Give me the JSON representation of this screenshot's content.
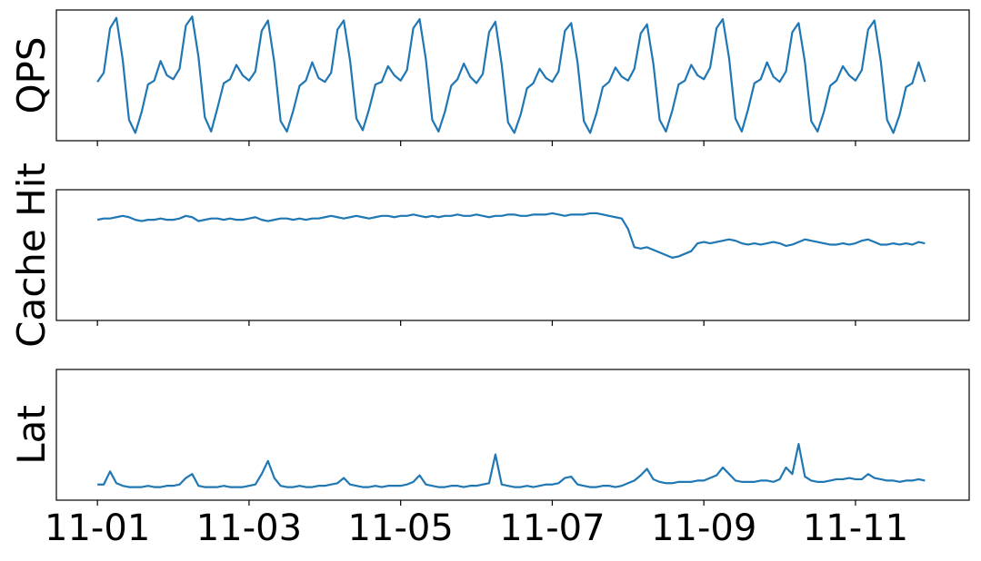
{
  "chart_data": [
    {
      "type": "line",
      "ylabel": "QPS",
      "color": "#1f77b4",
      "xlim": [
        -13,
        276
      ],
      "ylim": [
        0,
        1
      ],
      "xticks": [
        0,
        48,
        96,
        144,
        192,
        240
      ],
      "x": [
        0,
        2,
        4,
        6,
        8,
        10,
        12,
        14,
        16,
        18,
        20,
        22,
        24,
        26,
        28,
        30,
        32,
        34,
        36,
        38,
        40,
        42,
        44,
        46,
        48,
        50,
        52,
        54,
        56,
        58,
        60,
        62,
        64,
        66,
        68,
        70,
        72,
        74,
        76,
        78,
        80,
        82,
        84,
        86,
        88,
        90,
        92,
        94,
        96,
        98,
        100,
        102,
        104,
        106,
        108,
        110,
        112,
        114,
        116,
        118,
        120,
        122,
        124,
        126,
        128,
        130,
        132,
        134,
        136,
        138,
        140,
        142,
        144,
        146,
        148,
        150,
        152,
        154,
        156,
        158,
        160,
        162,
        164,
        166,
        168,
        170,
        172,
        174,
        176,
        178,
        180,
        182,
        184,
        186,
        188,
        190,
        192,
        194,
        196,
        198,
        200,
        202,
        204,
        206,
        208,
        210,
        212,
        214,
        216,
        218,
        220,
        222,
        224,
        226,
        228,
        230,
        232,
        234,
        236,
        238,
        240,
        242,
        244,
        246,
        248,
        250,
        252,
        254,
        256,
        258,
        260,
        262
      ],
      "values": [
        0.45,
        0.52,
        0.86,
        0.94,
        0.62,
        0.16,
        0.06,
        0.22,
        0.43,
        0.46,
        0.61,
        0.5,
        0.47,
        0.55,
        0.88,
        0.95,
        0.64,
        0.18,
        0.07,
        0.25,
        0.44,
        0.47,
        0.58,
        0.5,
        0.46,
        0.53,
        0.84,
        0.92,
        0.6,
        0.15,
        0.07,
        0.23,
        0.42,
        0.46,
        0.6,
        0.48,
        0.45,
        0.52,
        0.85,
        0.92,
        0.61,
        0.17,
        0.08,
        0.24,
        0.43,
        0.45,
        0.57,
        0.5,
        0.46,
        0.54,
        0.86,
        0.93,
        0.62,
        0.16,
        0.07,
        0.22,
        0.42,
        0.47,
        0.59,
        0.49,
        0.44,
        0.51,
        0.83,
        0.91,
        0.58,
        0.14,
        0.06,
        0.2,
        0.4,
        0.44,
        0.55,
        0.48,
        0.45,
        0.53,
        0.84,
        0.9,
        0.6,
        0.15,
        0.06,
        0.21,
        0.41,
        0.45,
        0.56,
        0.49,
        0.46,
        0.55,
        0.82,
        0.89,
        0.59,
        0.16,
        0.07,
        0.23,
        0.43,
        0.46,
        0.58,
        0.5,
        0.47,
        0.56,
        0.86,
        0.93,
        0.63,
        0.17,
        0.07,
        0.24,
        0.44,
        0.47,
        0.6,
        0.49,
        0.45,
        0.53,
        0.83,
        0.9,
        0.6,
        0.15,
        0.07,
        0.22,
        0.42,
        0.46,
        0.57,
        0.5,
        0.46,
        0.54,
        0.85,
        0.92,
        0.61,
        0.16,
        0.06,
        0.2,
        0.41,
        0.44,
        0.6,
        0.45
      ]
    },
    {
      "type": "line",
      "ylabel": "Cache Hit",
      "color": "#1f77b4",
      "xlim": [
        -13,
        276
      ],
      "ylim": [
        0,
        1
      ],
      "xticks": [
        0,
        48,
        96,
        144,
        192,
        240
      ],
      "x": [
        0,
        2,
        4,
        6,
        8,
        10,
        12,
        14,
        16,
        18,
        20,
        22,
        24,
        26,
        28,
        30,
        32,
        34,
        36,
        38,
        40,
        42,
        44,
        46,
        48,
        50,
        52,
        54,
        56,
        58,
        60,
        62,
        64,
        66,
        68,
        70,
        72,
        74,
        76,
        78,
        80,
        82,
        84,
        86,
        88,
        90,
        92,
        94,
        96,
        98,
        100,
        102,
        104,
        106,
        108,
        110,
        112,
        114,
        116,
        118,
        120,
        122,
        124,
        126,
        128,
        130,
        132,
        134,
        136,
        138,
        140,
        142,
        144,
        146,
        148,
        150,
        152,
        154,
        156,
        158,
        160,
        162,
        164,
        166,
        168,
        170,
        172,
        174,
        176,
        178,
        180,
        182,
        184,
        186,
        188,
        190,
        192,
        194,
        196,
        198,
        200,
        202,
        204,
        206,
        208,
        210,
        212,
        214,
        216,
        218,
        220,
        222,
        224,
        226,
        228,
        230,
        232,
        234,
        236,
        238,
        240,
        242,
        244,
        246,
        248,
        250,
        252,
        254,
        256,
        258,
        260,
        262
      ],
      "values": [
        0.77,
        0.78,
        0.78,
        0.79,
        0.8,
        0.79,
        0.77,
        0.76,
        0.77,
        0.77,
        0.78,
        0.77,
        0.77,
        0.78,
        0.8,
        0.79,
        0.76,
        0.77,
        0.78,
        0.78,
        0.77,
        0.78,
        0.77,
        0.77,
        0.78,
        0.79,
        0.77,
        0.76,
        0.77,
        0.78,
        0.78,
        0.77,
        0.78,
        0.77,
        0.78,
        0.78,
        0.79,
        0.8,
        0.79,
        0.78,
        0.79,
        0.8,
        0.79,
        0.78,
        0.79,
        0.8,
        0.8,
        0.79,
        0.8,
        0.8,
        0.81,
        0.8,
        0.79,
        0.8,
        0.79,
        0.8,
        0.8,
        0.81,
        0.8,
        0.8,
        0.81,
        0.8,
        0.79,
        0.8,
        0.8,
        0.81,
        0.81,
        0.8,
        0.8,
        0.81,
        0.81,
        0.81,
        0.82,
        0.81,
        0.8,
        0.81,
        0.81,
        0.81,
        0.82,
        0.82,
        0.81,
        0.8,
        0.79,
        0.78,
        0.7,
        0.56,
        0.55,
        0.56,
        0.54,
        0.52,
        0.5,
        0.48,
        0.49,
        0.51,
        0.53,
        0.59,
        0.6,
        0.59,
        0.6,
        0.61,
        0.62,
        0.61,
        0.59,
        0.58,
        0.59,
        0.58,
        0.59,
        0.6,
        0.59,
        0.57,
        0.58,
        0.6,
        0.62,
        0.61,
        0.6,
        0.59,
        0.58,
        0.58,
        0.59,
        0.58,
        0.59,
        0.61,
        0.62,
        0.6,
        0.58,
        0.58,
        0.59,
        0.58,
        0.59,
        0.58,
        0.6,
        0.59
      ]
    },
    {
      "type": "line",
      "ylabel": "Lat",
      "color": "#1f77b4",
      "xlim": [
        -13,
        276
      ],
      "ylim": [
        0,
        1
      ],
      "xticks": [
        {
          "value": 0,
          "label": "11-01"
        },
        {
          "value": 48,
          "label": "11-03"
        },
        {
          "value": 96,
          "label": "11-05"
        },
        {
          "value": 144,
          "label": "11-07"
        },
        {
          "value": 192,
          "label": "11-09"
        },
        {
          "value": 240,
          "label": "11-11"
        }
      ],
      "x": [
        0,
        2,
        4,
        6,
        8,
        10,
        12,
        14,
        16,
        18,
        20,
        22,
        24,
        26,
        28,
        30,
        32,
        34,
        36,
        38,
        40,
        42,
        44,
        46,
        48,
        50,
        52,
        54,
        56,
        58,
        60,
        62,
        64,
        66,
        68,
        70,
        72,
        74,
        76,
        78,
        80,
        82,
        84,
        86,
        88,
        90,
        92,
        94,
        96,
        98,
        100,
        102,
        104,
        106,
        108,
        110,
        112,
        114,
        116,
        118,
        120,
        122,
        124,
        126,
        128,
        130,
        132,
        134,
        136,
        138,
        140,
        142,
        144,
        146,
        148,
        150,
        152,
        154,
        156,
        158,
        160,
        162,
        164,
        166,
        168,
        170,
        172,
        174,
        176,
        178,
        180,
        182,
        184,
        186,
        188,
        190,
        192,
        194,
        196,
        198,
        200,
        202,
        204,
        206,
        208,
        210,
        212,
        214,
        216,
        218,
        220,
        222,
        224,
        226,
        228,
        230,
        232,
        234,
        236,
        238,
        240,
        242,
        244,
        246,
        248,
        250,
        252,
        254,
        256,
        258,
        260,
        262
      ],
      "values": [
        0.12,
        0.12,
        0.22,
        0.13,
        0.11,
        0.1,
        0.1,
        0.1,
        0.11,
        0.1,
        0.1,
        0.11,
        0.11,
        0.12,
        0.17,
        0.2,
        0.11,
        0.1,
        0.1,
        0.1,
        0.11,
        0.1,
        0.1,
        0.1,
        0.11,
        0.12,
        0.2,
        0.3,
        0.17,
        0.11,
        0.1,
        0.1,
        0.11,
        0.1,
        0.1,
        0.11,
        0.11,
        0.12,
        0.13,
        0.17,
        0.12,
        0.11,
        0.1,
        0.1,
        0.11,
        0.1,
        0.11,
        0.11,
        0.11,
        0.12,
        0.14,
        0.19,
        0.12,
        0.11,
        0.1,
        0.1,
        0.11,
        0.11,
        0.1,
        0.11,
        0.11,
        0.12,
        0.13,
        0.35,
        0.12,
        0.11,
        0.1,
        0.1,
        0.11,
        0.1,
        0.11,
        0.12,
        0.12,
        0.13,
        0.17,
        0.18,
        0.12,
        0.11,
        0.1,
        0.1,
        0.11,
        0.11,
        0.1,
        0.11,
        0.13,
        0.15,
        0.19,
        0.24,
        0.16,
        0.14,
        0.13,
        0.13,
        0.14,
        0.14,
        0.14,
        0.15,
        0.15,
        0.17,
        0.19,
        0.25,
        0.2,
        0.15,
        0.14,
        0.14,
        0.14,
        0.15,
        0.15,
        0.14,
        0.16,
        0.25,
        0.2,
        0.43,
        0.18,
        0.15,
        0.14,
        0.14,
        0.15,
        0.16,
        0.16,
        0.17,
        0.16,
        0.16,
        0.2,
        0.17,
        0.16,
        0.15,
        0.15,
        0.14,
        0.15,
        0.15,
        0.16,
        0.15
      ]
    }
  ]
}
